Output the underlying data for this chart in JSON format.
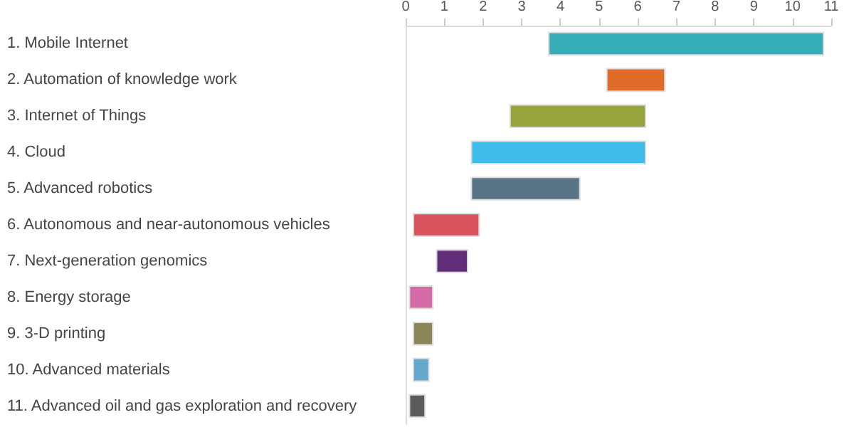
{
  "chart_data": {
    "type": "bar",
    "orientation": "horizontal",
    "categories": [
      "1. Mobile Internet",
      "2. Automation of knowledge work",
      "3. Internet of Things",
      "4. Cloud",
      "5. Advanced robotics",
      "6. Autonomous and near-autonomous vehicles",
      "7. Next-generation genomics",
      "8. Energy storage",
      "9. 3-D printing",
      "10. Advanced materials",
      "11. Advanced oil and gas exploration and recovery"
    ],
    "base": [
      3.7,
      5.2,
      2.7,
      1.7,
      1.7,
      0.2,
      0.8,
      0.1,
      0.2,
      0.2,
      0.1
    ],
    "values": [
      7.1,
      1.5,
      3.5,
      4.5,
      2.8,
      1.7,
      0.8,
      0.6,
      0.5,
      0.4,
      0.4
    ],
    "colors": [
      "#35aeb8",
      "#e06a28",
      "#97a43c",
      "#3fbce9",
      "#587487",
      "#d9545f",
      "#632e78",
      "#d46aa6",
      "#8a8658",
      "#66a8cc",
      "#5b5b5b"
    ],
    "xlim": [
      0,
      11
    ],
    "xticks": [
      0,
      1,
      2,
      3,
      4,
      5,
      6,
      7,
      8,
      9,
      10,
      11
    ],
    "grid": false
  }
}
